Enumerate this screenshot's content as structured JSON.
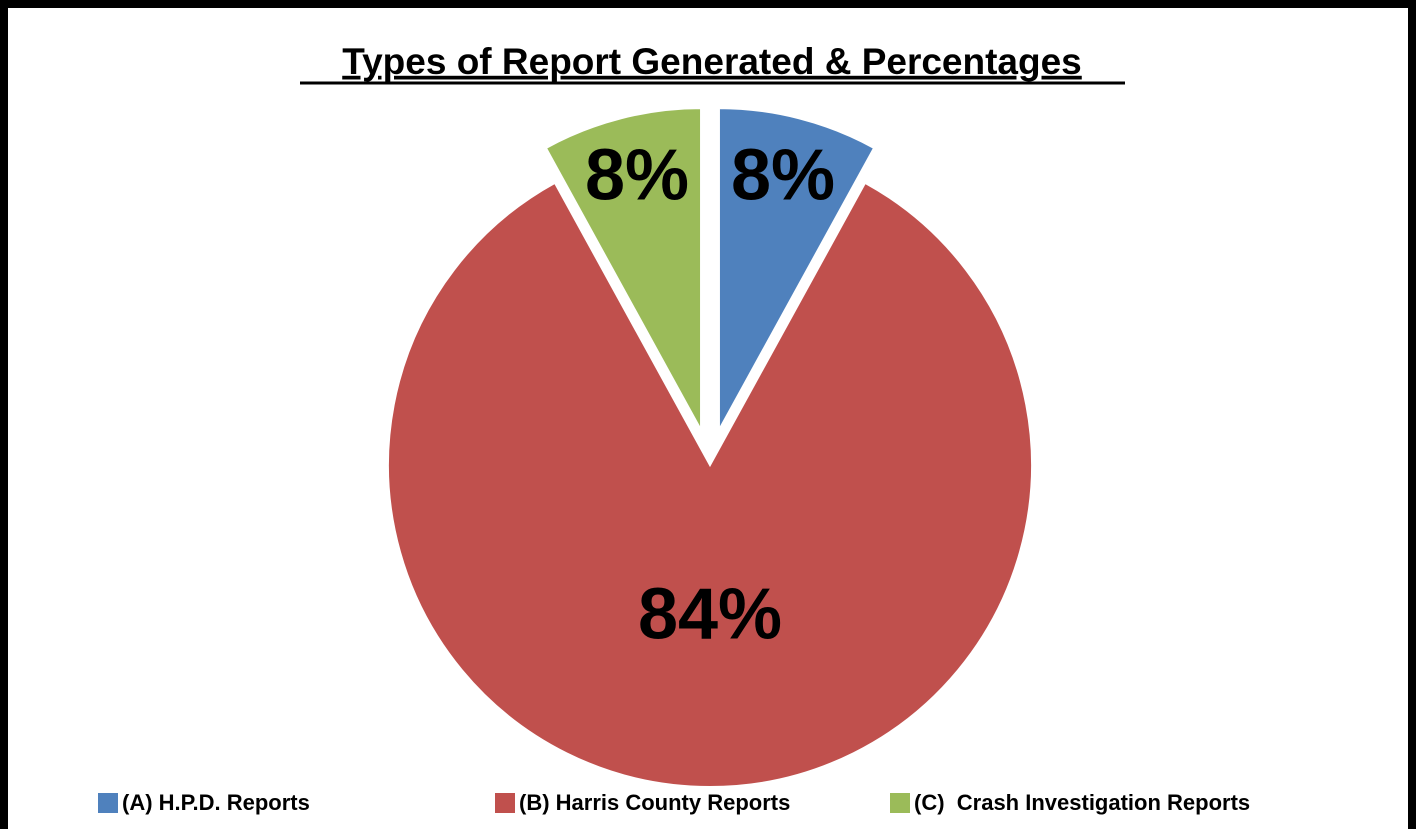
{
  "chart_data": {
    "type": "pie",
    "title": "Types of Report Generated & Percentages",
    "categories": [
      "(A) H.P.D. Reports",
      "(B) Harris County Reports",
      "(C)  Crash Investigation Reports"
    ],
    "values": [
      8,
      84,
      8
    ],
    "value_labels": [
      "8%",
      "84%",
      "8%"
    ],
    "colors": [
      "#4f81bd",
      "#c0504d",
      "#9bbb59"
    ],
    "legend": "bottom"
  }
}
